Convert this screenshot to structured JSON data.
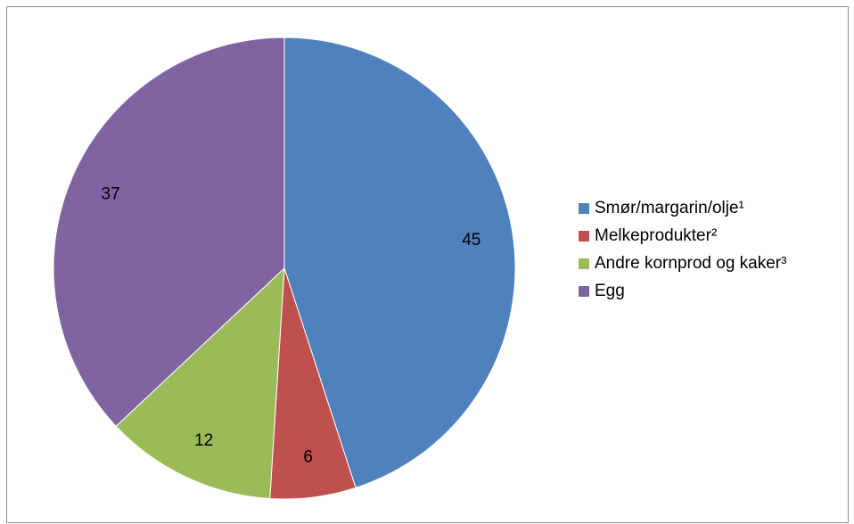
{
  "chart_data": {
    "type": "pie",
    "title": "",
    "slices": [
      {
        "label": "Smør/margarin/olje¹",
        "value": 45,
        "color": "#4f81bd",
        "data_label": "45"
      },
      {
        "label": "Melkeprodukter²",
        "value": 6,
        "color": "#c0504d",
        "data_label": "6"
      },
      {
        "label": "Andre kornprod og kaker³",
        "value": 12,
        "color": "#9bbb59",
        "data_label": "12"
      },
      {
        "label": "Egg",
        "value": 37,
        "color": "#8064a2",
        "data_label": "37"
      }
    ],
    "legend_position": "right"
  }
}
